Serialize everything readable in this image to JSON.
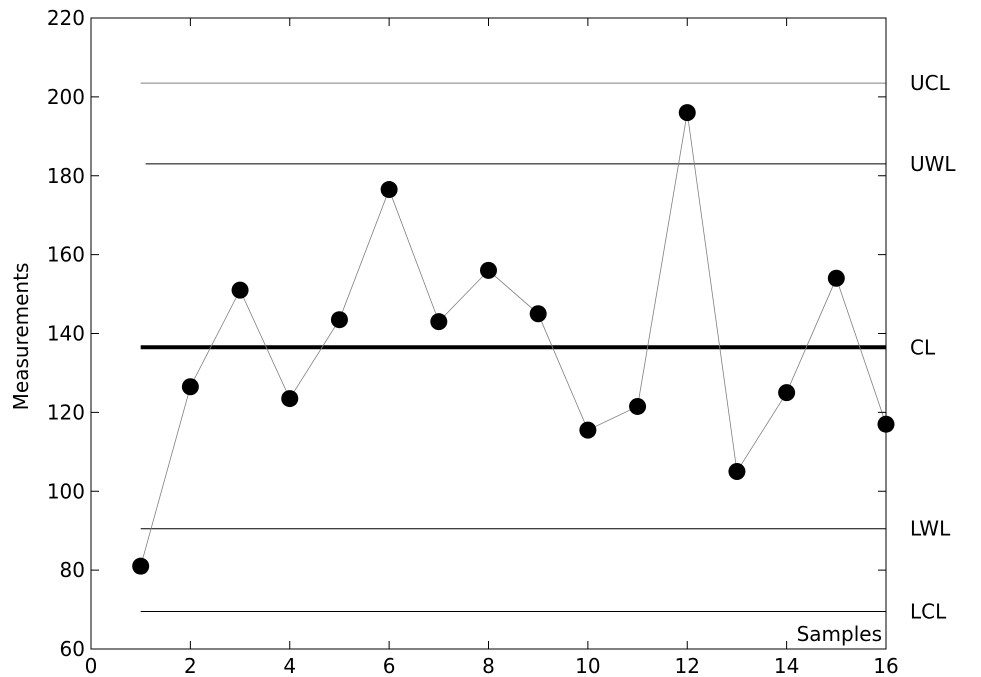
{
  "chart_data": {
    "type": "line",
    "title": "",
    "xlabel": "Samples",
    "ylabel": "Measurements",
    "xlim": [
      0,
      16
    ],
    "ylim": [
      60,
      220
    ],
    "xticks": [
      0,
      2,
      4,
      6,
      8,
      10,
      12,
      14,
      16
    ],
    "yticks": [
      60,
      80,
      100,
      120,
      140,
      160,
      180,
      200,
      220
    ],
    "grid": false,
    "series": [
      {
        "x": [
          1,
          2,
          3,
          4,
          5,
          6,
          7,
          8,
          9,
          10,
          11,
          12,
          13,
          14,
          15,
          16
        ],
        "values": [
          81,
          126.5,
          151,
          123.5,
          143.5,
          176.5,
          143,
          156,
          145,
          115.5,
          121.5,
          196,
          105,
          125,
          154,
          117
        ],
        "marker": "circle",
        "color": "#000000"
      }
    ],
    "control_limits": [
      {
        "label": "UCL",
        "value": 203.5,
        "x_start": 1.0,
        "weight": "thin",
        "color": "#808080"
      },
      {
        "label": "UWL",
        "value": 183,
        "x_start": 1.1,
        "weight": "thin",
        "color": "#000000"
      },
      {
        "label": "CL",
        "value": 136.5,
        "x_start": 1.0,
        "weight": "thick",
        "color": "#000000"
      },
      {
        "label": "LWL",
        "value": 90.5,
        "x_start": 1.0,
        "weight": "thin",
        "color": "#000000"
      },
      {
        "label": "LCL",
        "value": 69.5,
        "x_start": 1.0,
        "weight": "thin",
        "color": "#000000"
      }
    ]
  }
}
